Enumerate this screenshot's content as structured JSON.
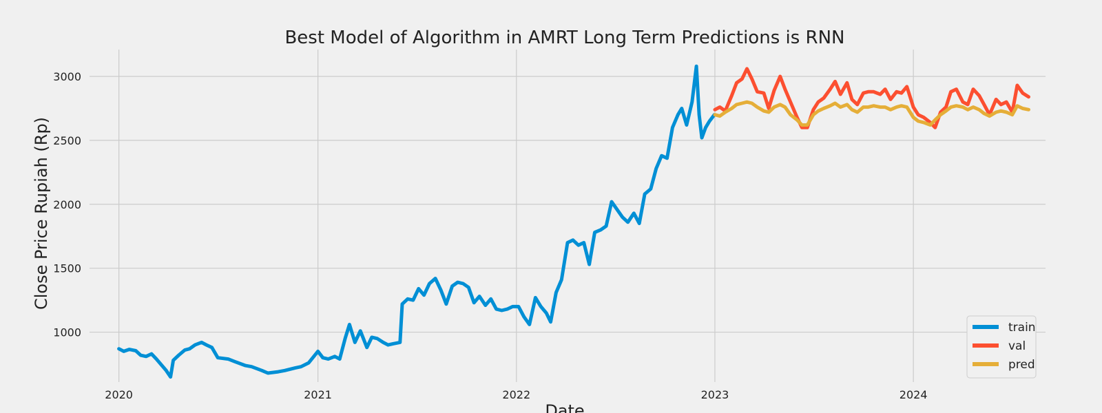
{
  "chart_data": {
    "type": "line",
    "title": "Best Model of Algorithm in AMRT Long Term Predictions is RNN",
    "xlabel": "Date",
    "ylabel": "Close Price Rupiah (Rp)",
    "x_ticks": [
      "2020",
      "2021",
      "2022",
      "2023",
      "2024"
    ],
    "y_ticks": [
      1000,
      1500,
      2000,
      2500,
      3000
    ],
    "xlim": [
      "2019-11-08",
      "2024-08-31"
    ],
    "ylim": [
      610,
      3210
    ],
    "grid": true,
    "legend_position": "bottom-right",
    "series": [
      {
        "name": "train",
        "color": "#008fd5",
        "points": [
          [
            "2020-01-01",
            870
          ],
          [
            "2020-01-10",
            850
          ],
          [
            "2020-01-20",
            865
          ],
          [
            "2020-02-01",
            855
          ],
          [
            "2020-02-10",
            820
          ],
          [
            "2020-02-20",
            810
          ],
          [
            "2020-03-01",
            830
          ],
          [
            "2020-03-10",
            790
          ],
          [
            "2020-03-20",
            740
          ],
          [
            "2020-03-28",
            700
          ],
          [
            "2020-04-05",
            650
          ],
          [
            "2020-04-10",
            780
          ],
          [
            "2020-04-20",
            820
          ],
          [
            "2020-05-01",
            860
          ],
          [
            "2020-05-10",
            870
          ],
          [
            "2020-05-20",
            900
          ],
          [
            "2020-06-01",
            920
          ],
          [
            "2020-06-10",
            900
          ],
          [
            "2020-06-20",
            880
          ],
          [
            "2020-07-01",
            800
          ],
          [
            "2020-07-20",
            790
          ],
          [
            "2020-08-01",
            770
          ],
          [
            "2020-08-20",
            740
          ],
          [
            "2020-09-01",
            730
          ],
          [
            "2020-09-20",
            700
          ],
          [
            "2020-10-01",
            680
          ],
          [
            "2020-10-20",
            690
          ],
          [
            "2020-11-01",
            700
          ],
          [
            "2020-11-20",
            720
          ],
          [
            "2020-12-01",
            730
          ],
          [
            "2020-12-15",
            760
          ],
          [
            "2021-01-01",
            850
          ],
          [
            "2021-01-10",
            800
          ],
          [
            "2021-01-20",
            790
          ],
          [
            "2021-02-01",
            810
          ],
          [
            "2021-02-10",
            790
          ],
          [
            "2021-02-20",
            950
          ],
          [
            "2021-02-28",
            1060
          ],
          [
            "2021-03-10",
            920
          ],
          [
            "2021-03-20",
            1010
          ],
          [
            "2021-04-01",
            880
          ],
          [
            "2021-04-10",
            960
          ],
          [
            "2021-04-20",
            950
          ],
          [
            "2021-05-01",
            920
          ],
          [
            "2021-05-10",
            900
          ],
          [
            "2021-05-20",
            910
          ],
          [
            "2021-06-01",
            920
          ],
          [
            "2021-06-05",
            1220
          ],
          [
            "2021-06-15",
            1260
          ],
          [
            "2021-06-25",
            1250
          ],
          [
            "2021-07-05",
            1340
          ],
          [
            "2021-07-15",
            1290
          ],
          [
            "2021-07-25",
            1380
          ],
          [
            "2021-08-05",
            1420
          ],
          [
            "2021-08-15",
            1330
          ],
          [
            "2021-08-25",
            1220
          ],
          [
            "2021-09-05",
            1360
          ],
          [
            "2021-09-15",
            1390
          ],
          [
            "2021-09-25",
            1380
          ],
          [
            "2021-10-05",
            1350
          ],
          [
            "2021-10-15",
            1230
          ],
          [
            "2021-10-25",
            1280
          ],
          [
            "2021-11-05",
            1210
          ],
          [
            "2021-11-15",
            1260
          ],
          [
            "2021-11-25",
            1180
          ],
          [
            "2021-12-05",
            1170
          ],
          [
            "2021-12-15",
            1180
          ],
          [
            "2021-12-25",
            1200
          ],
          [
            "2022-01-05",
            1200
          ],
          [
            "2022-01-15",
            1120
          ],
          [
            "2022-01-25",
            1060
          ],
          [
            "2022-02-05",
            1270
          ],
          [
            "2022-02-15",
            1200
          ],
          [
            "2022-02-25",
            1150
          ],
          [
            "2022-03-05",
            1080
          ],
          [
            "2022-03-15",
            1310
          ],
          [
            "2022-03-25",
            1410
          ],
          [
            "2022-04-05",
            1700
          ],
          [
            "2022-04-15",
            1720
          ],
          [
            "2022-04-25",
            1680
          ],
          [
            "2022-05-05",
            1700
          ],
          [
            "2022-05-15",
            1530
          ],
          [
            "2022-05-25",
            1780
          ],
          [
            "2022-06-05",
            1800
          ],
          [
            "2022-06-15",
            1830
          ],
          [
            "2022-06-25",
            2020
          ],
          [
            "2022-07-05",
            1960
          ],
          [
            "2022-07-15",
            1900
          ],
          [
            "2022-07-25",
            1860
          ],
          [
            "2022-08-05",
            1930
          ],
          [
            "2022-08-15",
            1850
          ],
          [
            "2022-08-25",
            2080
          ],
          [
            "2022-09-05",
            2120
          ],
          [
            "2022-09-15",
            2280
          ],
          [
            "2022-09-25",
            2380
          ],
          [
            "2022-10-05",
            2360
          ],
          [
            "2022-10-15",
            2600
          ],
          [
            "2022-10-25",
            2700
          ],
          [
            "2022-11-01",
            2750
          ],
          [
            "2022-11-10",
            2620
          ],
          [
            "2022-11-20",
            2800
          ],
          [
            "2022-11-28",
            3080
          ],
          [
            "2022-12-03",
            2700
          ],
          [
            "2022-12-08",
            2520
          ],
          [
            "2022-12-15",
            2600
          ],
          [
            "2022-12-22",
            2650
          ],
          [
            "2022-12-31",
            2700
          ]
        ]
      },
      {
        "name": "val",
        "color": "#fc4f30",
        "points": [
          [
            "2023-01-01",
            2740
          ],
          [
            "2023-01-10",
            2760
          ],
          [
            "2023-01-20",
            2730
          ],
          [
            "2023-02-01",
            2850
          ],
          [
            "2023-02-10",
            2950
          ],
          [
            "2023-02-20",
            2980
          ],
          [
            "2023-03-01",
            3060
          ],
          [
            "2023-03-10",
            2980
          ],
          [
            "2023-03-20",
            2880
          ],
          [
            "2023-04-01",
            2870
          ],
          [
            "2023-04-10",
            2750
          ],
          [
            "2023-04-20",
            2890
          ],
          [
            "2023-05-01",
            3000
          ],
          [
            "2023-05-10",
            2900
          ],
          [
            "2023-05-20",
            2800
          ],
          [
            "2023-06-01",
            2680
          ],
          [
            "2023-06-10",
            2600
          ],
          [
            "2023-06-20",
            2600
          ],
          [
            "2023-07-01",
            2740
          ],
          [
            "2023-07-10",
            2800
          ],
          [
            "2023-07-20",
            2830
          ],
          [
            "2023-08-01",
            2900
          ],
          [
            "2023-08-10",
            2960
          ],
          [
            "2023-08-20",
            2860
          ],
          [
            "2023-09-01",
            2950
          ],
          [
            "2023-09-10",
            2820
          ],
          [
            "2023-09-20",
            2780
          ],
          [
            "2023-10-01",
            2870
          ],
          [
            "2023-10-10",
            2880
          ],
          [
            "2023-10-20",
            2880
          ],
          [
            "2023-11-01",
            2860
          ],
          [
            "2023-11-10",
            2900
          ],
          [
            "2023-11-20",
            2820
          ],
          [
            "2023-12-01",
            2880
          ],
          [
            "2023-12-10",
            2870
          ],
          [
            "2023-12-20",
            2920
          ],
          [
            "2024-01-01",
            2760
          ],
          [
            "2024-01-10",
            2700
          ],
          [
            "2024-01-20",
            2680
          ],
          [
            "2024-02-01",
            2640
          ],
          [
            "2024-02-10",
            2600
          ],
          [
            "2024-02-20",
            2720
          ],
          [
            "2024-03-01",
            2760
          ],
          [
            "2024-03-10",
            2880
          ],
          [
            "2024-03-20",
            2900
          ],
          [
            "2024-04-01",
            2800
          ],
          [
            "2024-04-10",
            2780
          ],
          [
            "2024-04-20",
            2900
          ],
          [
            "2024-05-01",
            2850
          ],
          [
            "2024-05-10",
            2780
          ],
          [
            "2024-05-20",
            2700
          ],
          [
            "2024-06-01",
            2820
          ],
          [
            "2024-06-10",
            2780
          ],
          [
            "2024-06-20",
            2800
          ],
          [
            "2024-07-01",
            2720
          ],
          [
            "2024-07-10",
            2930
          ],
          [
            "2024-07-20",
            2870
          ],
          [
            "2024-07-31",
            2840
          ]
        ]
      },
      {
        "name": "pred",
        "color": "#e5ae38",
        "points": [
          [
            "2023-01-01",
            2700
          ],
          [
            "2023-01-10",
            2690
          ],
          [
            "2023-01-20",
            2720
          ],
          [
            "2023-02-01",
            2750
          ],
          [
            "2023-02-10",
            2780
          ],
          [
            "2023-02-20",
            2790
          ],
          [
            "2023-03-01",
            2800
          ],
          [
            "2023-03-10",
            2790
          ],
          [
            "2023-03-20",
            2760
          ],
          [
            "2023-04-01",
            2730
          ],
          [
            "2023-04-10",
            2720
          ],
          [
            "2023-04-20",
            2760
          ],
          [
            "2023-05-01",
            2780
          ],
          [
            "2023-05-10",
            2760
          ],
          [
            "2023-05-20",
            2700
          ],
          [
            "2023-06-01",
            2660
          ],
          [
            "2023-06-10",
            2620
          ],
          [
            "2023-06-20",
            2620
          ],
          [
            "2023-07-01",
            2700
          ],
          [
            "2023-07-10",
            2730
          ],
          [
            "2023-07-20",
            2750
          ],
          [
            "2023-08-01",
            2770
          ],
          [
            "2023-08-10",
            2790
          ],
          [
            "2023-08-20",
            2760
          ],
          [
            "2023-09-01",
            2780
          ],
          [
            "2023-09-10",
            2740
          ],
          [
            "2023-09-20",
            2720
          ],
          [
            "2023-10-01",
            2760
          ],
          [
            "2023-10-10",
            2760
          ],
          [
            "2023-10-20",
            2770
          ],
          [
            "2023-11-01",
            2760
          ],
          [
            "2023-11-10",
            2760
          ],
          [
            "2023-11-20",
            2740
          ],
          [
            "2023-12-01",
            2760
          ],
          [
            "2023-12-10",
            2770
          ],
          [
            "2023-12-20",
            2760
          ],
          [
            "2024-01-01",
            2680
          ],
          [
            "2024-01-10",
            2650
          ],
          [
            "2024-01-20",
            2640
          ],
          [
            "2024-02-01",
            2620
          ],
          [
            "2024-02-10",
            2660
          ],
          [
            "2024-02-20",
            2700
          ],
          [
            "2024-03-01",
            2730
          ],
          [
            "2024-03-10",
            2760
          ],
          [
            "2024-03-20",
            2770
          ],
          [
            "2024-04-01",
            2760
          ],
          [
            "2024-04-10",
            2740
          ],
          [
            "2024-04-20",
            2760
          ],
          [
            "2024-05-01",
            2740
          ],
          [
            "2024-05-10",
            2710
          ],
          [
            "2024-05-20",
            2690
          ],
          [
            "2024-06-01",
            2720
          ],
          [
            "2024-06-10",
            2730
          ],
          [
            "2024-06-20",
            2720
          ],
          [
            "2024-07-01",
            2700
          ],
          [
            "2024-07-10",
            2770
          ],
          [
            "2024-07-20",
            2750
          ],
          [
            "2024-07-31",
            2740
          ]
        ]
      }
    ]
  }
}
